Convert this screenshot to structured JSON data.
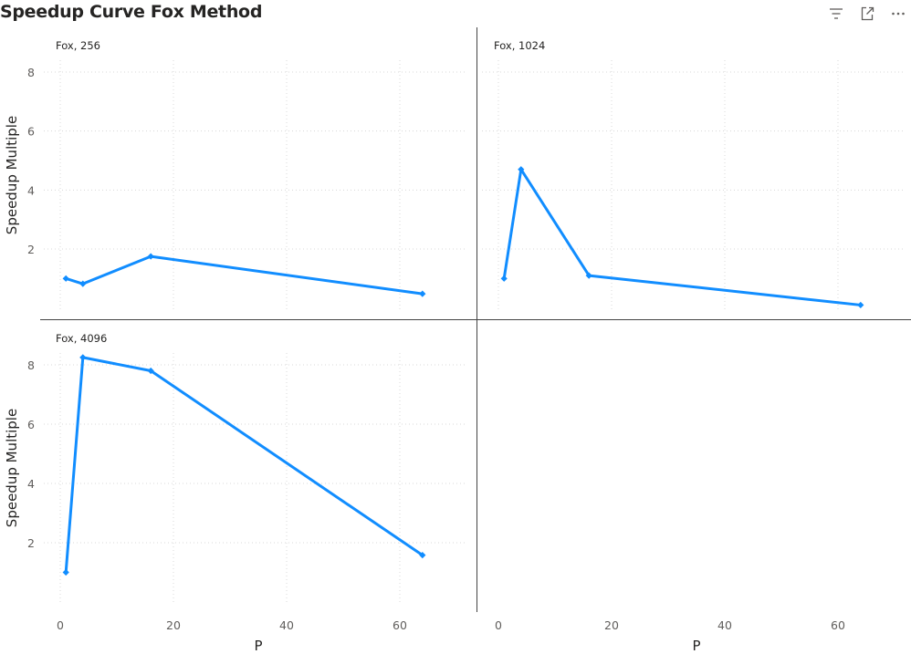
{
  "title": "Speedup Curve Fox Method",
  "header_icons": [
    "filter-icon",
    "focus-mode-icon",
    "more-options-icon"
  ],
  "chart_data": {
    "type": "line",
    "layout": "small-multiples",
    "title": "Speedup Curve Fox Method",
    "xlabel": "P",
    "ylabel": "Speedup Multiple",
    "xlim": [
      -2,
      70
    ],
    "ylim": [
      -0.1,
      8.3
    ],
    "x_ticks": [
      0,
      20,
      40,
      60
    ],
    "y_ticks": [
      2,
      4,
      6,
      8
    ],
    "grid": true,
    "color": "#118DFF",
    "panels": [
      {
        "name": "Fox, 256",
        "points": [
          [
            1,
            1.0
          ],
          [
            4,
            0.82
          ],
          [
            16,
            1.75
          ],
          [
            64,
            0.48
          ]
        ]
      },
      {
        "name": "Fox, 1024",
        "points": [
          [
            1,
            1.0
          ],
          [
            4,
            4.7
          ],
          [
            16,
            1.1
          ],
          [
            64,
            0.1
          ]
        ]
      },
      {
        "name": "Fox, 4096",
        "points": [
          [
            1,
            1.0
          ],
          [
            4,
            8.25
          ],
          [
            16,
            7.8
          ],
          [
            64,
            1.58
          ]
        ]
      }
    ]
  }
}
